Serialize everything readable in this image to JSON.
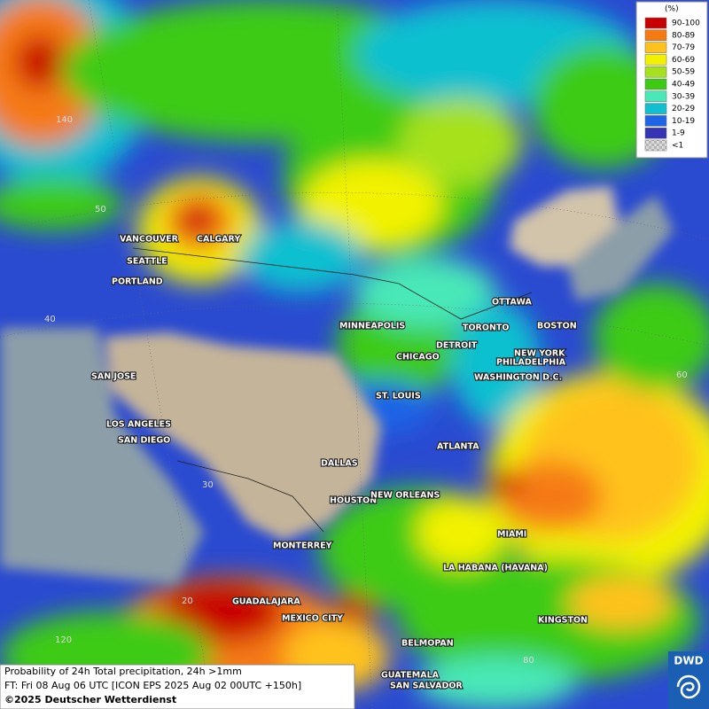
{
  "legend": {
    "title": "(%)",
    "items": [
      {
        "label": "90-100",
        "color": "#c80000"
      },
      {
        "label": "80-89",
        "color": "#f57a12"
      },
      {
        "label": "70-79",
        "color": "#ffc21c"
      },
      {
        "label": "60-69",
        "color": "#f2f200"
      },
      {
        "label": "50-59",
        "color": "#a6e11e"
      },
      {
        "label": "40-49",
        "color": "#3ccb12"
      },
      {
        "label": "30-39",
        "color": "#48e8b8"
      },
      {
        "label": "20-29",
        "color": "#10c0d0"
      },
      {
        "label": "10-19",
        "color": "#1e64e6"
      },
      {
        "label": "1-9",
        "color": "#3434b4"
      },
      {
        "label": "<1",
        "color": "#b4b4b4"
      }
    ]
  },
  "cities": [
    "VANCOUVER",
    "CALGARY",
    "SEATTLE",
    "PORTLAND",
    "SAN JOSE",
    "LOS ANGELES",
    "SAN DIEGO",
    "DALLAS",
    "HOUSTON",
    "NEW ORLEANS",
    "MONTERREY",
    "GUADALAJARA",
    "MEXICO CITY",
    "BELMOPAN",
    "GUATEMALA",
    "SAN SALVADOR",
    "LA HABANA (HAVANA)",
    "MIAMI",
    "KINGSTON",
    "ATLANTA",
    "ST. LOUIS",
    "CHICAGO",
    "MINNEAPOLIS",
    "DETROIT",
    "TORONTO",
    "OTTAWA",
    "BOSTON",
    "NEW YORK",
    "PHILADELPHIA",
    "WASHINGTON D.C."
  ],
  "graticule_labels": [
    "140",
    "50",
    "40",
    "30",
    "20",
    "120",
    "60",
    "80"
  ],
  "caption": {
    "lines": [
      "Probability of 24h Total precipitation, 24h >1mm",
      "FT: Fri 08 Aug 06 UTC [ICON EPS 2025 Aug 02 00UTC +150h]",
      "©2025 Deutscher Wetterdienst"
    ]
  },
  "logo": "DWD"
}
